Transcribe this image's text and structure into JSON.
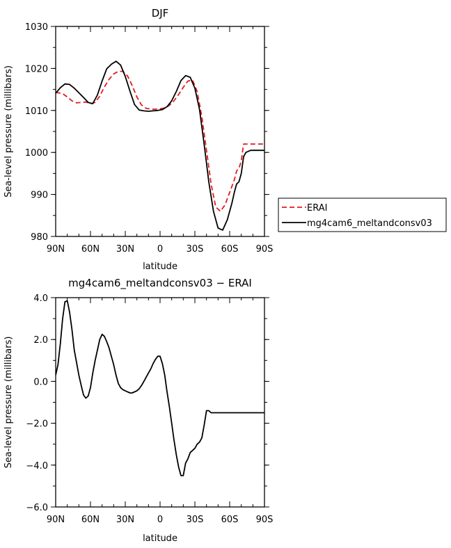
{
  "chart_data": [
    {
      "type": "line",
      "title": "DJF",
      "xlabel": "latitude",
      "ylabel": "Sea-level pressure (millibars)",
      "xlim": [
        90,
        -90
      ],
      "ylim": [
        980,
        1030
      ],
      "xticks": [
        90,
        60,
        30,
        0,
        -30,
        -60,
        -90
      ],
      "xtick_labels": [
        "90N",
        "60N",
        "30N",
        "0",
        "30S",
        "60S",
        "90S"
      ],
      "yticks": [
        980,
        990,
        1000,
        1010,
        1020,
        1030
      ],
      "ytick_labels": [
        "980",
        "990",
        "1000",
        "1010",
        "1020",
        "1030"
      ],
      "legend_position": "right",
      "series": [
        {
          "name": "ERAI",
          "color": "#e41a1c",
          "dash": "dashed",
          "x": [
            90,
            84,
            80,
            76,
            72,
            68,
            64,
            60,
            56,
            52,
            48,
            44,
            40,
            36,
            32,
            28,
            24,
            20,
            16,
            12,
            8,
            4,
            0,
            -4,
            -8,
            -12,
            -16,
            -20,
            -24,
            -28,
            -32,
            -36,
            -40,
            -44,
            -48,
            -52,
            -56,
            -60,
            -64,
            -66,
            -68,
            -70,
            -72,
            -76,
            -80,
            -84,
            -88,
            -90
          ],
          "y": [
            1014.3,
            1014.0,
            1013.2,
            1012.3,
            1011.8,
            1011.9,
            1012.0,
            1011.6,
            1011.9,
            1013.4,
            1015.6,
            1017.4,
            1018.7,
            1019.3,
            1019.3,
            1018.2,
            1015.9,
            1013.2,
            1011.3,
            1010.5,
            1010.3,
            1010.3,
            1010.4,
            1010.6,
            1011.2,
            1012.3,
            1013.8,
            1015.5,
            1017.0,
            1017.2,
            1014.5,
            1008.5,
            1000.5,
            992.5,
            987.0,
            986.0,
            987.5,
            990.5,
            993.5,
            995.6,
            996.2,
            998.0,
            1002.0,
            1002.0,
            1002.0,
            1002.0,
            1002.0,
            1002.0
          ]
        },
        {
          "name": "mg4cam6_meltandconsv03",
          "color": "#000000",
          "dash": "solid",
          "x": [
            90,
            86,
            82,
            78,
            74,
            70,
            66,
            62,
            58,
            54,
            50,
            46,
            42,
            38,
            34,
            30,
            26,
            22,
            18,
            14,
            10,
            6,
            2,
            -2,
            -6,
            -10,
            -14,
            -18,
            -22,
            -26,
            -30,
            -34,
            -38,
            -42,
            -46,
            -50,
            -54,
            -58,
            -62,
            -64,
            -66,
            -68,
            -70,
            -72,
            -74,
            -78,
            -82,
            -86,
            -88,
            -90
          ],
          "y": [
            1014.1,
            1015.4,
            1016.3,
            1016.2,
            1015.3,
            1014.2,
            1013.1,
            1011.9,
            1011.6,
            1013.7,
            1017.0,
            1019.9,
            1021.0,
            1021.7,
            1020.8,
            1018.1,
            1014.6,
            1011.4,
            1010.1,
            1009.9,
            1009.8,
            1009.9,
            1010.0,
            1010.2,
            1010.9,
            1012.3,
            1014.5,
            1017.1,
            1018.3,
            1017.9,
            1015.3,
            1010.2,
            1002.0,
            993.0,
            986.0,
            982.0,
            981.5,
            984.0,
            988.0,
            990.5,
            992.5,
            993.0,
            995.0,
            999.0,
            1000.0,
            1000.5,
            1000.5,
            1000.5,
            1000.5,
            1000.5
          ]
        }
      ]
    },
    {
      "type": "line",
      "title": "mg4cam6_meltandconsv03 − ERAI",
      "xlabel": "latitude",
      "ylabel": "Sea-level pressure (millibars)",
      "xlim": [
        90,
        -90
      ],
      "ylim": [
        -6.0,
        4.0
      ],
      "xticks": [
        90,
        60,
        30,
        0,
        -30,
        -60,
        -90
      ],
      "xtick_labels": [
        "90N",
        "60N",
        "30N",
        "0",
        "30S",
        "60S",
        "90S"
      ],
      "yticks": [
        -6.0,
        -4.0,
        -2.0,
        0.0,
        2.0,
        4.0
      ],
      "ytick_labels": [
        "−6.0",
        "−4.0",
        "−2.0",
        "0.0",
        "2.0",
        "4.0"
      ],
      "series": [
        {
          "name": "",
          "color": "#000000",
          "dash": "solid",
          "x": [
            90,
            88,
            86,
            84,
            82,
            80,
            78,
            76,
            74,
            72,
            70,
            68,
            66,
            64,
            62,
            60,
            58,
            56,
            54,
            52,
            50,
            48,
            46,
            44,
            42,
            40,
            38,
            36,
            34,
            32,
            30,
            28,
            26,
            24,
            22,
            20,
            18,
            16,
            14,
            12,
            10,
            8,
            6,
            4,
            2,
            0,
            -2,
            -4,
            -6,
            -8,
            -10,
            -12,
            -14,
            -16,
            -18,
            -20,
            -22,
            -24,
            -26,
            -28,
            -30,
            -32,
            -34,
            -36,
            -38,
            -40,
            -42,
            -44,
            -46,
            -48,
            -50,
            -52,
            -54,
            -56,
            -58,
            -60,
            -62,
            -64,
            -66,
            -68,
            -70,
            -72,
            -74,
            -76,
            -78,
            -80,
            -82,
            -84,
            -86,
            -88,
            -90
          ],
          "y": [
            0.3,
            0.8,
            1.8,
            3.0,
            3.8,
            3.85,
            3.3,
            2.5,
            1.5,
            0.9,
            0.3,
            -0.2,
            -0.65,
            -0.8,
            -0.7,
            -0.3,
            0.4,
            1.0,
            1.5,
            2.0,
            2.25,
            2.15,
            1.9,
            1.6,
            1.2,
            0.8,
            0.3,
            -0.1,
            -0.3,
            -0.4,
            -0.45,
            -0.5,
            -0.55,
            -0.55,
            -0.5,
            -0.45,
            -0.35,
            -0.2,
            0.0,
            0.2,
            0.4,
            0.6,
            0.85,
            1.05,
            1.2,
            1.2,
            0.85,
            0.3,
            -0.5,
            -1.2,
            -2.0,
            -2.8,
            -3.5,
            -4.1,
            -4.5,
            -4.5,
            -3.9,
            -3.7,
            -3.4,
            -3.3,
            -3.2,
            -3.0,
            -2.9,
            -2.7,
            -2.1,
            -1.4,
            -1.4,
            -1.5,
            -1.5,
            -1.5,
            -1.5,
            -1.5,
            -1.5,
            -1.5,
            -1.5,
            -1.5,
            -1.5,
            -1.5,
            -1.5,
            -1.5,
            -1.5,
            -1.5,
            -1.5,
            -1.5,
            -1.5,
            -1.5,
            -1.5,
            -1.5,
            -1.5,
            -1.5,
            -1.5
          ]
        }
      ]
    }
  ]
}
